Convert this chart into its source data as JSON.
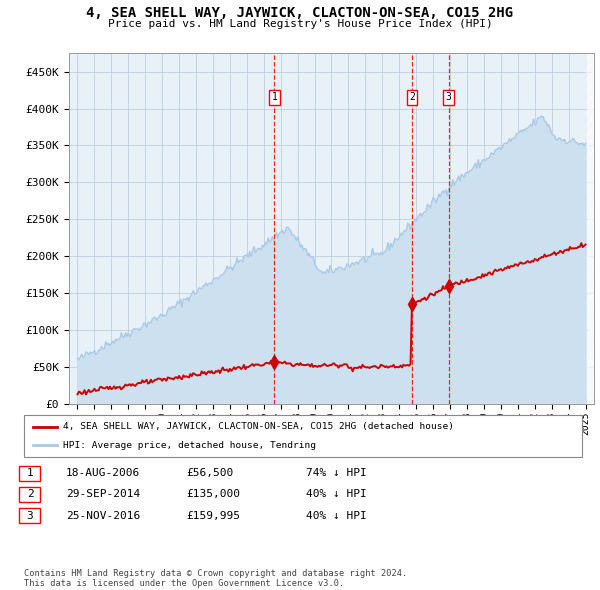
{
  "title": "4, SEA SHELL WAY, JAYWICK, CLACTON-ON-SEA, CO15 2HG",
  "subtitle": "Price paid vs. HM Land Registry's House Price Index (HPI)",
  "hpi_color": "#a8c8e8",
  "hpi_fill_color": "#cce0f0",
  "price_color": "#cc0000",
  "plot_bg_color": "#e8f0f8",
  "grid_color": "#b8c8d8",
  "sale_dates": [
    2006.63,
    2014.75,
    2016.92
  ],
  "sale_prices": [
    56500,
    135000,
    159995
  ],
  "sale_labels": [
    "1",
    "2",
    "3"
  ],
  "legend_price_label": "4, SEA SHELL WAY, JAYWICK, CLACTON-ON-SEA, CO15 2HG (detached house)",
  "legend_hpi_label": "HPI: Average price, detached house, Tendring",
  "table_rows": [
    [
      "1",
      "18-AUG-2006",
      "£56,500",
      "74% ↓ HPI"
    ],
    [
      "2",
      "29-SEP-2014",
      "£135,000",
      "40% ↓ HPI"
    ],
    [
      "3",
      "25-NOV-2016",
      "£159,995",
      "40% ↓ HPI"
    ]
  ],
  "footer": "Contains HM Land Registry data © Crown copyright and database right 2024.\nThis data is licensed under the Open Government Licence v3.0.",
  "ylim": [
    0,
    475000
  ],
  "xlim": [
    1994.5,
    2025.5
  ],
  "yticks": [
    0,
    50000,
    100000,
    150000,
    200000,
    250000,
    300000,
    350000,
    400000,
    450000
  ],
  "ytick_labels": [
    "£0",
    "£50K",
    "£100K",
    "£150K",
    "£200K",
    "£250K",
    "£300K",
    "£350K",
    "£400K",
    "£450K"
  ],
  "xticks": [
    1995,
    1996,
    1997,
    1998,
    1999,
    2000,
    2001,
    2002,
    2003,
    2004,
    2005,
    2006,
    2007,
    2008,
    2009,
    2010,
    2011,
    2012,
    2013,
    2014,
    2015,
    2016,
    2017,
    2018,
    2019,
    2020,
    2021,
    2022,
    2023,
    2024,
    2025
  ]
}
